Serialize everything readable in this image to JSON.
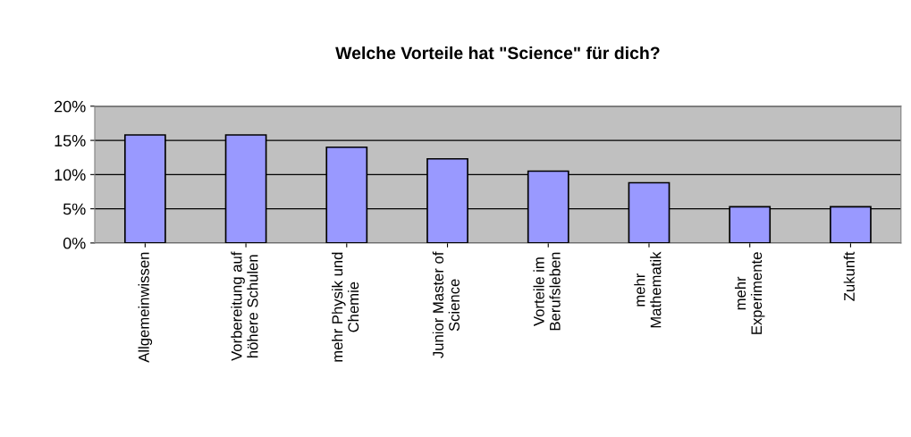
{
  "chart_data": {
    "type": "bar",
    "title": "Welche Vorteile hat \"Science\" für dich?",
    "categories": [
      "Allgemeinwissen",
      "Vorbereitung auf\nhöhere Schulen",
      "mehr Physik und\nChemie",
      "Junior Master of\nScience",
      "Vorteile im\nBerufsleben",
      "mehr\nMathematik",
      "mehr\nExperimente",
      "Zukunft"
    ],
    "values": [
      15.8,
      15.8,
      14.0,
      12.3,
      10.5,
      8.8,
      5.3,
      5.3
    ],
    "color": "#9999ff",
    "ylim": [
      0,
      20
    ],
    "yticks": [
      {
        "value": 0,
        "label": "0%"
      },
      {
        "value": 5,
        "label": "5%"
      },
      {
        "value": 10,
        "label": "10%"
      },
      {
        "value": 15,
        "label": "15%"
      },
      {
        "value": 20,
        "label": "20%"
      }
    ],
    "grid": "y",
    "legend": false
  }
}
